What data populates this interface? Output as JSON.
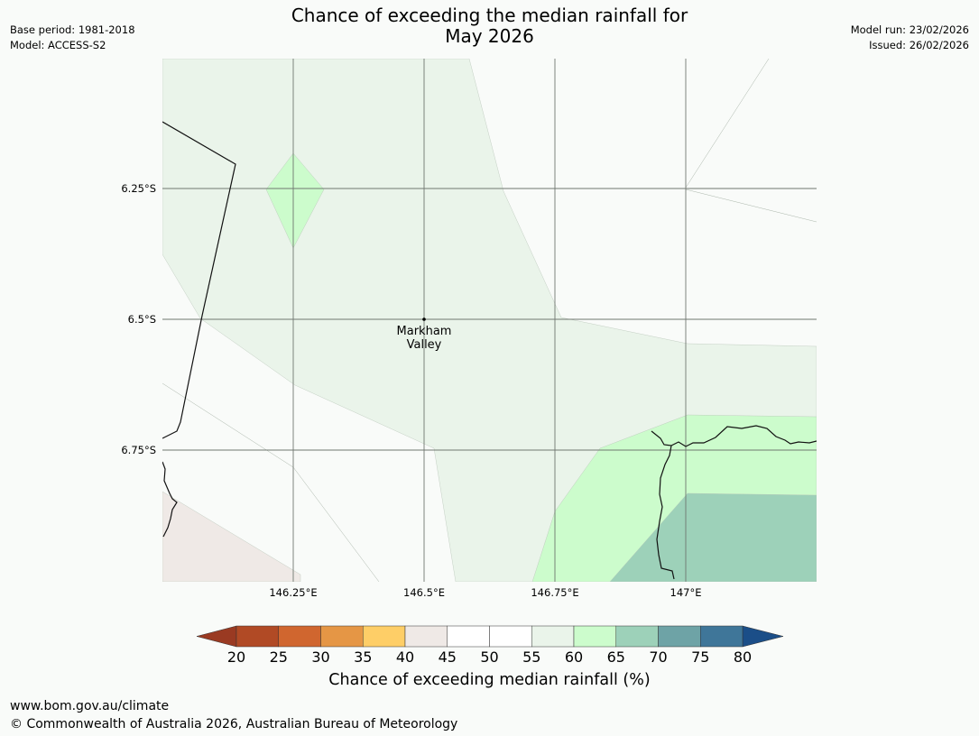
{
  "header": {
    "title_line1": "Chance of exceeding the median rainfall for",
    "title_line2": "May 2026",
    "base_period": "Base period: 1981-2018",
    "model": "Model: ACCESS-S2",
    "model_run": "Model run: 23/02/2026",
    "issued": "Issued: 26/02/2026"
  },
  "map": {
    "lat_labels": [
      "6.25°S",
      "6.5°S",
      "6.75°S"
    ],
    "lon_labels": [
      "146.25°E",
      "146.5°E",
      "146.75°E",
      "147°E"
    ],
    "place": {
      "line1": "Markham",
      "line2": "Valley"
    },
    "region_colors": {
      "p40_45": "#efe9e6",
      "p45_55": "#f9fbf9",
      "p55_60": "#eaf4ea",
      "p60_65": "#ccfccc",
      "p65_70": "#9dd1b9"
    }
  },
  "colorbar": {
    "label": "Chance of exceeding median rainfall (%)",
    "ticks": [
      "20",
      "25",
      "30",
      "35",
      "40",
      "45",
      "50",
      "55",
      "60",
      "65",
      "70",
      "75",
      "80"
    ],
    "under_color": "#9a3a22",
    "over_color": "#1b4e88",
    "colors": [
      "#b14a25",
      "#d0662f",
      "#e59645",
      "#fece67",
      "#efe9e6",
      "#ffffff",
      "#ffffff",
      "#eaf4ea",
      "#ccfccc",
      "#9dd1b9",
      "#6ea3a6",
      "#3f7699"
    ]
  },
  "footer": {
    "url": "www.bom.gov.au/climate",
    "copyright": "© Commonwealth of Australia 2026, Australian Bureau of Meteorology"
  }
}
